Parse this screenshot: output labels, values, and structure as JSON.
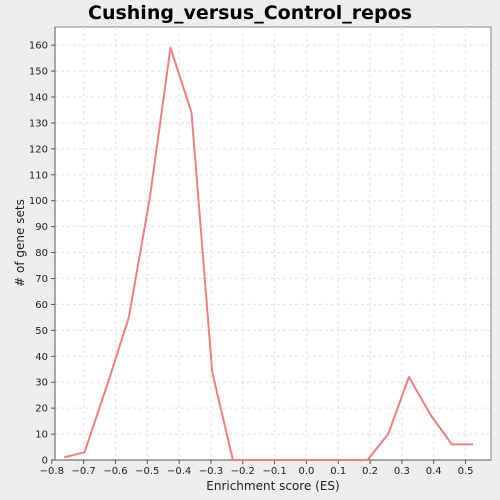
{
  "chart_data": {
    "type": "line",
    "title": "Cushing_versus_Control_repos",
    "xlabel": "Enrichment score (ES)",
    "ylabel": "# of gene sets",
    "xlim": [
      -0.79,
      0.58
    ],
    "ylim": [
      0,
      167
    ],
    "xticks": [
      -0.8,
      -0.7,
      -0.6,
      -0.5,
      -0.4,
      -0.3,
      -0.2,
      -0.1,
      0.0,
      0.1,
      0.2,
      0.3,
      0.4,
      0.5
    ],
    "xtick_labels": [
      "−0.8",
      "−0.7",
      "−0.6",
      "−0.5",
      "−0.4",
      "−0.3",
      "−0.2",
      "−0.1",
      "0.0",
      "0.1",
      "0.2",
      "0.3",
      "0.4",
      "0.5"
    ],
    "yticks": [
      0,
      10,
      20,
      30,
      40,
      50,
      60,
      70,
      80,
      90,
      100,
      110,
      120,
      130,
      140,
      150,
      160
    ],
    "grid": true,
    "series": [
      {
        "color": "#f07f7f",
        "x": [
          -0.761,
          -0.697,
          -0.623,
          -0.558,
          -0.492,
          -0.427,
          -0.361,
          -0.296,
          -0.231,
          -0.165,
          -0.1,
          -0.034,
          0.031,
          0.097,
          0.192,
          0.257,
          0.322,
          0.392,
          0.457,
          0.523
        ],
        "y": [
          1,
          3,
          30,
          55,
          101,
          159,
          134,
          34,
          0,
          0,
          0,
          0,
          0,
          0,
          0,
          10,
          32,
          17,
          6,
          6
        ]
      }
    ]
  }
}
